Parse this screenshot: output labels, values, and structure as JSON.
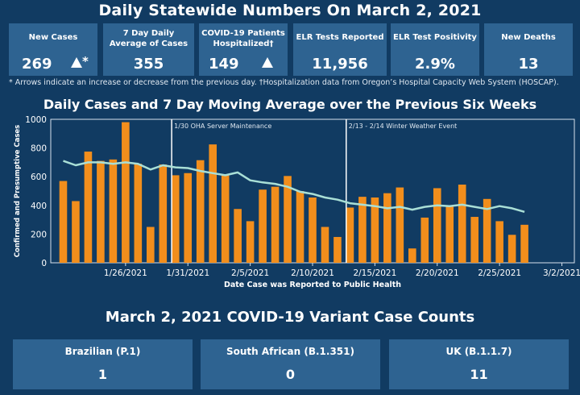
{
  "header": {
    "title": "Daily Statewide Numbers On March 2, 2021"
  },
  "cards": [
    {
      "label": "New Cases",
      "value": "269",
      "arrow": "up",
      "mark": "*"
    },
    {
      "label": "7 Day Daily Average of Cases",
      "value": "355"
    },
    {
      "label": "COVID-19 Patients Hospitalized†",
      "value": "149",
      "arrow": "up"
    },
    {
      "label": "ELR Tests Reported",
      "value": "11,956"
    },
    {
      "label": "ELR Test Positivity",
      "value": "2.9%"
    },
    {
      "label": "New Deaths",
      "value": "13"
    }
  ],
  "footnote": "* Arrows indicate an increase or decrease from the previous day. †Hospitalization data from Oregon’s Hospital Capacity Web System (HOSCAP).",
  "colors": {
    "bar": "#f28e1c",
    "line": "#a9dfd6",
    "background": "#113b62",
    "card": "#2e6391"
  },
  "chart_data": {
    "type": "bar",
    "title": "Daily Cases and 7 Day Moving Average over the Previous Six Weeks",
    "xlabel": "Date Case was Reported to Public Health",
    "ylabel": "Confirmed and Presumptive Cases",
    "ylim": [
      0,
      1000
    ],
    "yticks": [
      0,
      200,
      400,
      600,
      800,
      1000
    ],
    "xlim": [
      "1/20/2021",
      "3/2/2021"
    ],
    "xticks": [
      "1/26/2021",
      "1/31/2021",
      "2/5/2021",
      "2/10/2021",
      "2/15/2021",
      "2/20/2021",
      "2/25/2021",
      "3/2/2021"
    ],
    "categories": [
      "1/21",
      "1/22",
      "1/23",
      "1/24",
      "1/25",
      "1/26",
      "1/27",
      "1/28",
      "1/29",
      "1/30",
      "1/31",
      "2/1",
      "2/2",
      "2/3",
      "2/4",
      "2/5",
      "2/6",
      "2/7",
      "2/8",
      "2/9",
      "2/10",
      "2/11",
      "2/12",
      "2/13",
      "2/14",
      "2/15",
      "2/16",
      "2/17",
      "2/18",
      "2/19",
      "2/20",
      "2/21",
      "2/22",
      "2/23",
      "2/24",
      "2/25",
      "2/26",
      "2/27",
      "2/28",
      "3/1"
    ],
    "series": [
      {
        "name": "Daily Cases",
        "type": "bar",
        "values": [
          570,
          430,
          775,
          710,
          720,
          980,
          690,
          250,
          685,
          610,
          625,
          715,
          825,
          615,
          375,
          290,
          510,
          530,
          605,
          500,
          455,
          250,
          180,
          385,
          460,
          455,
          485,
          525,
          100,
          315,
          520,
          400,
          545,
          320,
          445,
          290,
          195,
          265,
          null,
          null
        ]
      },
      {
        "name": "7 Day Moving Average",
        "type": "line",
        "values": [
          710,
          680,
          700,
          700,
          690,
          700,
          690,
          650,
          680,
          665,
          660,
          640,
          625,
          610,
          630,
          575,
          560,
          550,
          530,
          495,
          480,
          455,
          440,
          415,
          405,
          395,
          380,
          390,
          370,
          390,
          400,
          395,
          405,
          390,
          375,
          395,
          380,
          355,
          null,
          null
        ]
      }
    ],
    "annotations": [
      {
        "date": "1/30",
        "text": "1/30 OHA Server Maintenance"
      },
      {
        "date": "2/13",
        "text": "2/13 - 2/14 Winter Weather Event"
      }
    ]
  },
  "variants": {
    "title": "March 2, 2021 COVID-19 Variant Case Counts",
    "items": [
      {
        "label": "Brazilian (P.1)",
        "value": "1"
      },
      {
        "label": "South African (B.1.351)",
        "value": "0"
      },
      {
        "label": "UK (B.1.1.7)",
        "value": "11"
      }
    ]
  }
}
